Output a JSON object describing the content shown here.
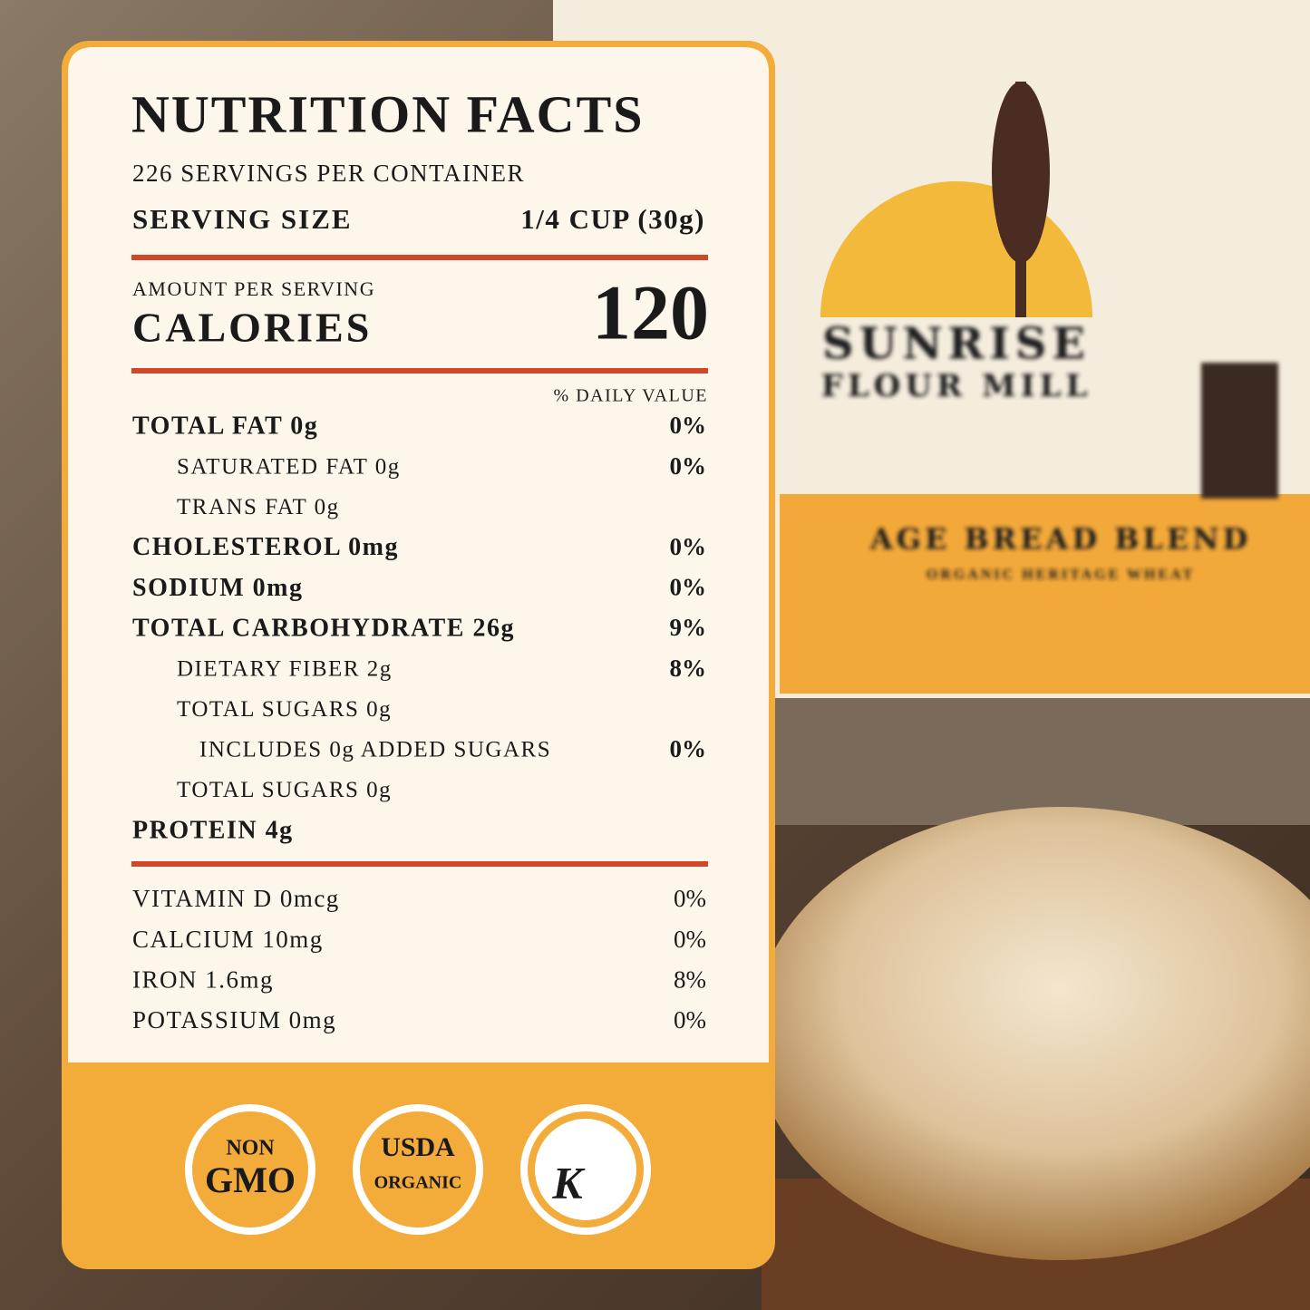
{
  "bag": {
    "brand_line1": "SUNRISE",
    "brand_line2": "FLOUR MILL",
    "blend": "AGE BREAD BLEND",
    "subline": "ORGANIC HERITAGE WHEAT"
  },
  "panel": {
    "title": "NUTRITION FACTS",
    "servings": "226 SERVINGS PER CONTAINER",
    "serving_size_label": "SERVING SIZE",
    "serving_size_value": "1/4 CUP (30g)",
    "amount_per_serving": "AMOUNT PER SERVING",
    "calories_label": "CALORIES",
    "calories_value": "120",
    "daily_value_header": "% DAILY VALUE",
    "nutrients": [
      {
        "label": "TOTAL FAT 0g",
        "dv": "0%",
        "sub": [
          {
            "label": "SATURATED FAT 0g",
            "dv": "0%"
          },
          {
            "label": "TRANS FAT 0g"
          }
        ]
      },
      {
        "label": "CHOLESTEROL 0mg",
        "dv": "0%"
      },
      {
        "label": "SODIUM 0mg",
        "dv": "0%"
      },
      {
        "label": "TOTAL CARBOHYDRATE 26g",
        "dv": "9%",
        "sub": [
          {
            "label": "DIETARY FIBER 2g",
            "dv": "8%"
          },
          {
            "label": "TOTAL SUGARS 0g",
            "sub": [
              {
                "label": "INCLUDES 0g ADDED SUGARS",
                "dv": "0%"
              }
            ]
          },
          {
            "label": "TOTAL SUGARS 0g"
          }
        ]
      },
      {
        "label": "PROTEIN 4g"
      }
    ],
    "vitamins": [
      {
        "label": "VITAMIN D 0mcg",
        "dv": "0%"
      },
      {
        "label": "CALCIUM 10mg",
        "dv": "0%"
      },
      {
        "label": "IRON 1.6mg",
        "dv": "8%"
      },
      {
        "label": "POTASSIUM 0mg",
        "dv": "0%"
      }
    ]
  },
  "badges": [
    {
      "line1": "NON",
      "line2": "GMO"
    },
    {
      "line1": "USDA",
      "line2": "ORGANIC"
    },
    {
      "line1": "K"
    }
  ]
}
